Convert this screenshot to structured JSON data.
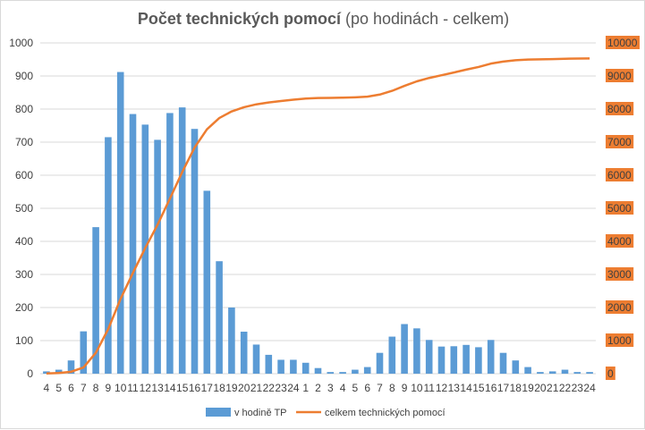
{
  "chart_data": {
    "type": "bar",
    "title_bold": "Počet technických pomocí",
    "title_rest": "(po hodinách - celkem)",
    "categories": [
      "4",
      "5",
      "6",
      "7",
      "8",
      "9",
      "10",
      "11",
      "12",
      "13",
      "14",
      "15",
      "16",
      "17",
      "18",
      "19",
      "20",
      "21",
      "22",
      "23",
      "24",
      "1",
      "2",
      "3",
      "4",
      "5",
      "6",
      "7",
      "8",
      "9",
      "10",
      "11",
      "12",
      "13",
      "14",
      "15",
      "16",
      "17",
      "18",
      "19",
      "20",
      "21",
      "22",
      "23",
      "24"
    ],
    "series": [
      {
        "name": "v hodině TP",
        "type": "bar",
        "axis": "left",
        "color": "#5b9bd5",
        "values": [
          7,
          12,
          40,
          128,
          443,
          715,
          912,
          785,
          753,
          707,
          788,
          805,
          740,
          553,
          340,
          200,
          127,
          88,
          57,
          42,
          42,
          33,
          17,
          5,
          5,
          12,
          20,
          63,
          112,
          150,
          137,
          102,
          82,
          83,
          87,
          80,
          102,
          63,
          40,
          20,
          5,
          7,
          12,
          5,
          5
        ]
      },
      {
        "name": "celkem technických pomocí",
        "type": "line",
        "axis": "right",
        "color": "#ed7d31",
        "values": [
          7,
          19,
          59,
          187,
          630,
          1345,
          2257,
          3042,
          3795,
          4502,
          5290,
          6095,
          6835,
          7388,
          7728,
          7928,
          8055,
          8143,
          8200,
          8242,
          8284,
          8317,
          8334,
          8339,
          8344,
          8356,
          8376,
          8439,
          8551,
          8701,
          8838,
          8940,
          9022,
          9105,
          9192,
          9272,
          9374,
          9437,
          9477,
          9497,
          9502,
          9509,
          9521,
          9526,
          9531
        ]
      }
    ],
    "y_left": {
      "min": 0,
      "max": 1000,
      "ticks": [
        "0",
        "100",
        "200",
        "300",
        "400",
        "500",
        "600",
        "700",
        "800",
        "900",
        "1000"
      ]
    },
    "y_right": {
      "min": 0,
      "max": 10000,
      "ticks": [
        "0",
        "1000",
        "2000",
        "3000",
        "4000",
        "5000",
        "6000",
        "7000",
        "8000",
        "9000",
        "10000"
      ],
      "label_bg": "#ed7d31"
    },
    "grid": true,
    "legend": "bottom"
  }
}
